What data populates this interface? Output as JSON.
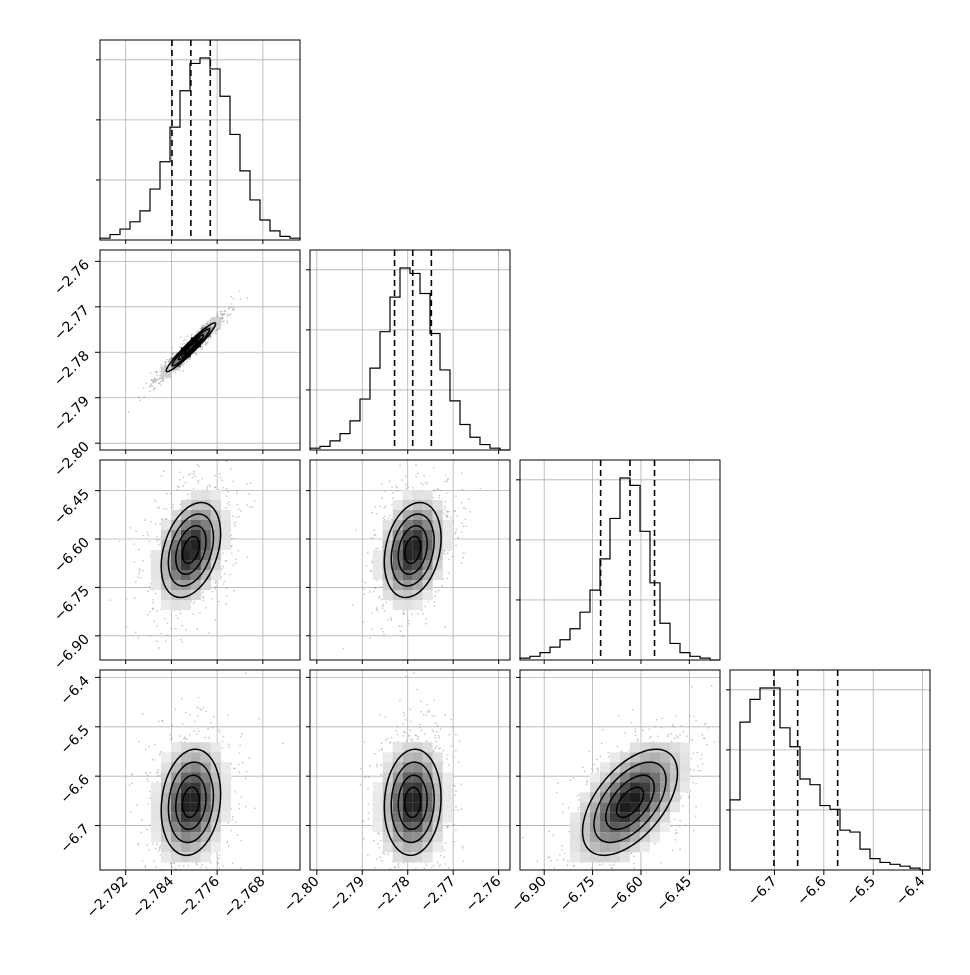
{
  "chart_data": {
    "type": "corner",
    "grid": true,
    "parameters": [
      {
        "axis_range": [
          -2.7965,
          -2.7615
        ],
        "ticks": [
          -2.792,
          -2.784,
          -2.776,
          -2.768
        ],
        "tick_labels": [
          "−2.792",
          "−2.784",
          "−2.776",
          "−2.768"
        ],
        "quantiles": [
          -2.7839,
          -2.7806,
          -2.7772
        ]
      },
      {
        "axis_range": [
          -2.8015,
          -2.7575
        ],
        "ticks": [
          -2.8,
          -2.79,
          -2.78,
          -2.77,
          -2.76
        ],
        "tick_labels": [
          "−2.80",
          "−2.79",
          "−2.78",
          "−2.77",
          "−2.76"
        ],
        "quantiles": [
          -2.7829,
          -2.7789,
          -2.7748
        ]
      },
      {
        "axis_range": [
          -6.975,
          -6.355
        ],
        "ticks": [
          -6.9,
          -6.75,
          -6.6,
          -6.45
        ],
        "tick_labels": [
          "−6.90",
          "−6.75",
          "−6.60",
          "−6.45"
        ],
        "quantiles": [
          -6.725,
          -6.634,
          -6.558
        ]
      },
      {
        "axis_range": [
          -6.79,
          -6.385
        ],
        "ticks": [
          -6.7,
          -6.6,
          -6.5,
          -6.4
        ],
        "tick_labels": [
          "−6.7",
          "−6.6",
          "−6.5",
          "−6.4"
        ],
        "quantiles": [
          -6.701,
          -6.653,
          -6.572
        ]
      }
    ],
    "y_axes": [
      {
        "row": 1,
        "axis_range": [
          -2.8015,
          -2.7575
        ],
        "ticks": [
          -2.76,
          -2.77,
          -2.78,
          -2.79,
          -2.8
        ],
        "tick_labels": [
          "−2.76",
          "−2.77",
          "−2.78",
          "−2.79",
          "−2.80"
        ]
      },
      {
        "row": 2,
        "axis_range": [
          -6.975,
          -6.355
        ],
        "ticks": [
          -6.45,
          -6.6,
          -6.75,
          -6.9
        ],
        "tick_labels": [
          "−6.45",
          "−6.60",
          "−6.75",
          "−6.90"
        ]
      },
      {
        "row": 3,
        "axis_range": [
          -6.79,
          -6.385
        ],
        "ticks": [
          -6.4,
          -6.5,
          -6.6,
          -6.7
        ],
        "tick_labels": [
          "−6.4",
          "−6.5",
          "−6.6",
          "−6.7"
        ]
      }
    ],
    "histograms": [
      {
        "param": 0,
        "bins": 20,
        "counts": [
          1,
          3,
          6,
          10,
          16,
          28,
          43,
          62,
          82,
          97,
          100,
          94,
          79,
          58,
          38,
          22,
          11,
          5,
          2,
          1
        ]
      },
      {
        "param": 1,
        "bins": 20,
        "counts": [
          1,
          2,
          5,
          9,
          16,
          28,
          45,
          65,
          84,
          100,
          97,
          86,
          64,
          44,
          27,
          14,
          7,
          3,
          1,
          0
        ]
      },
      {
        "param": 2,
        "bins": 20,
        "counts": [
          1,
          2,
          4,
          7,
          11,
          17,
          26,
          38,
          55,
          77,
          99,
          95,
          70,
          42,
          20,
          9,
          4,
          2,
          1,
          0
        ]
      },
      {
        "param": 3,
        "bins": 20,
        "counts": [
          37,
          78,
          90,
          96,
          96,
          75,
          65,
          48,
          45,
          34,
          32,
          21,
          20,
          11,
          6,
          4,
          3,
          2,
          1,
          0
        ]
      }
    ],
    "joint_densities": [
      {
        "x_param": 0,
        "y_param": 1,
        "center": [
          -2.7806,
          -2.7789
        ],
        "sd": [
          0.0025,
          0.0031
        ],
        "correlation": 0.96
      },
      {
        "x_param": 0,
        "y_param": 2,
        "center": [
          -2.7806,
          -6.634
        ],
        "sd": [
          0.003,
          0.085
        ],
        "correlation": 0.35
      },
      {
        "x_param": 1,
        "y_param": 2,
        "center": [
          -2.7789,
          -6.634
        ],
        "sd": [
          0.0036,
          0.085
        ],
        "correlation": 0.25
      },
      {
        "x_param": 0,
        "y_param": 3,
        "center": [
          -2.7806,
          -6.653
        ],
        "sd": [
          0.003,
          0.062
        ],
        "correlation": 0.15
      },
      {
        "x_param": 1,
        "y_param": 3,
        "center": [
          -2.7789,
          -6.653
        ],
        "sd": [
          0.0036,
          0.062
        ],
        "correlation": 0.08
      },
      {
        "x_param": 2,
        "y_param": 3,
        "center": [
          -6.634,
          -6.653
        ],
        "sd": [
          0.085,
          0.062
        ],
        "correlation": 0.55
      }
    ],
    "contour_levels": [
      0.12,
      0.39,
      0.86,
      1.5
    ]
  }
}
